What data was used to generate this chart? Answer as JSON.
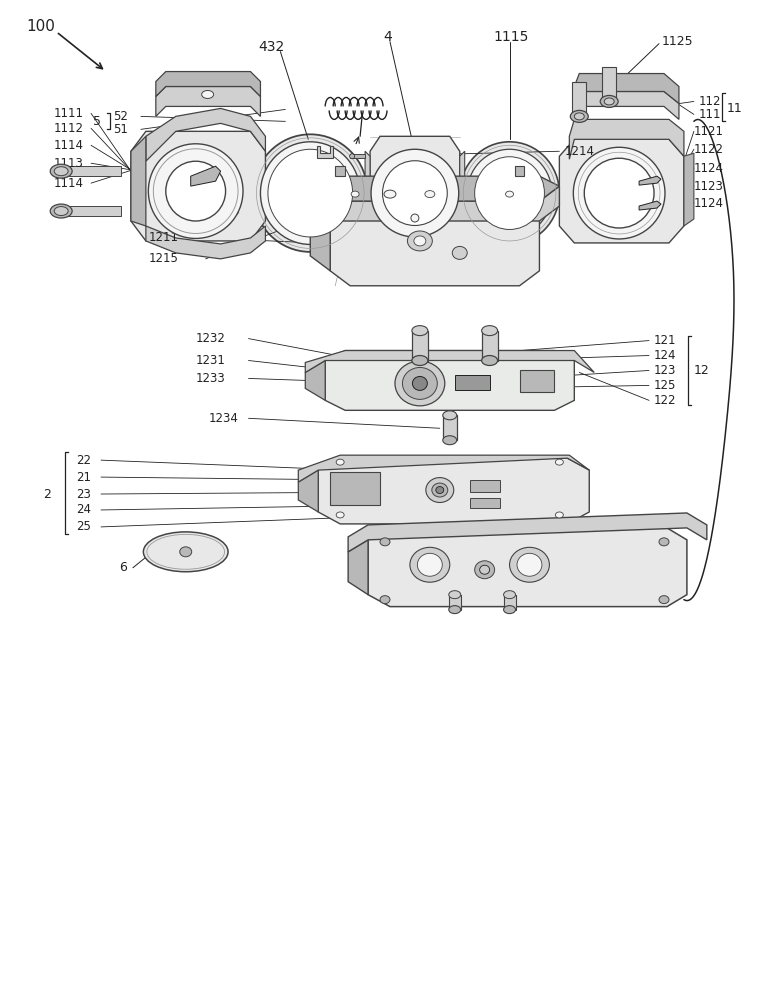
{
  "bg_color": "#ffffff",
  "lc": "#444444",
  "llc": "#999999",
  "dc": "#222222",
  "gray1": "#e8e8e8",
  "gray2": "#d0d0d0",
  "gray3": "#b8b8b8",
  "gray4": "#f5f5f5",
  "gray5": "#cccccc"
}
